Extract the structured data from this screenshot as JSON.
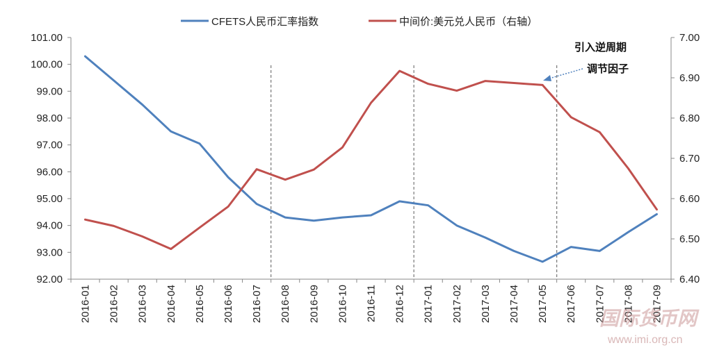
{
  "chart_data": {
    "type": "line",
    "categories": [
      "2016-01",
      "2016-02",
      "2016-03",
      "2016-04",
      "2016-05",
      "2016-06",
      "2016-07",
      "2016-08",
      "2016-09",
      "2016-10",
      "2016-11",
      "2016-12",
      "2017-01",
      "2017-02",
      "2017-03",
      "2017-04",
      "2017-05",
      "2017-06",
      "2017-07",
      "2017-08",
      "2017-09"
    ],
    "series": [
      {
        "name": "CFETS人民币汇率指数",
        "axis": "left",
        "color": "#4f81bd",
        "values": [
          100.3,
          99.4,
          98.5,
          97.5,
          97.05,
          95.8,
          94.8,
          94.3,
          94.18,
          94.3,
          94.38,
          94.9,
          94.75,
          94.0,
          93.55,
          93.05,
          92.65,
          93.2,
          93.05,
          93.75,
          94.42
        ]
      },
      {
        "name": "中间价:美元兑人民币（右轴）",
        "axis": "right",
        "color": "#c0504d",
        "values": [
          6.548,
          6.532,
          6.506,
          6.475,
          6.528,
          6.58,
          6.673,
          6.647,
          6.672,
          6.727,
          6.838,
          6.917,
          6.885,
          6.868,
          6.892,
          6.887,
          6.882,
          6.802,
          6.765,
          6.675,
          6.573
        ]
      }
    ],
    "ylim_left": [
      92,
      101
    ],
    "ylim_right": [
      6.4,
      7.0
    ],
    "left_ticks": [
      "92.00",
      "93.00",
      "94.00",
      "95.00",
      "96.00",
      "97.00",
      "98.00",
      "99.00",
      "100.00",
      "101.00"
    ],
    "right_ticks": [
      "6.40",
      "6.50",
      "6.60",
      "6.70",
      "6.80",
      "6.90",
      "7.00"
    ],
    "vlines": [
      "2016-07",
      "2016-12",
      "2017-05"
    ],
    "legend_position": "top",
    "annotation": {
      "lines": [
        "引入逆周期",
        "调节因子"
      ],
      "points_to": "2017-05"
    },
    "grid": false
  },
  "watermark": {
    "text": "国际货币网",
    "url": "www.imi.org.cn"
  }
}
